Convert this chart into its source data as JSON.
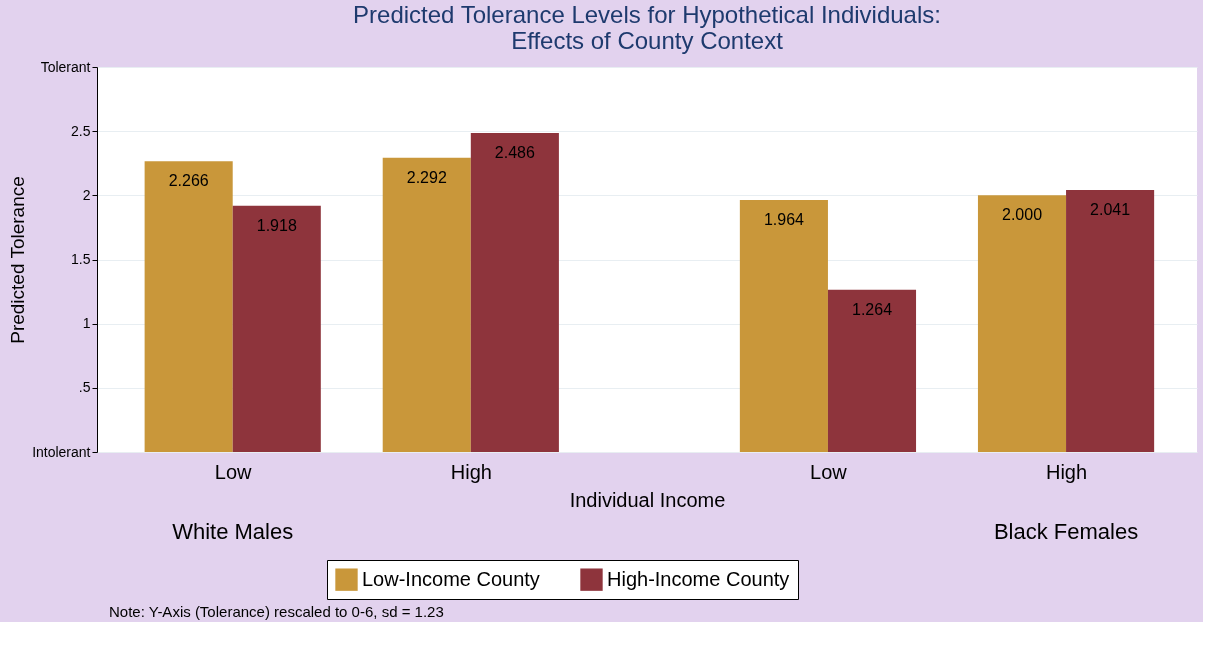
{
  "chart_data": {
    "type": "bar",
    "title": "Predicted Tolerance Levels for Hypothetical Individuals:\nEffects of County Context",
    "xlabel": "Individual Income",
    "ylabel": "Predicted Tolerance",
    "categories": [
      "Low",
      "High",
      "Low",
      "High"
    ],
    "series": [
      {
        "name": "Low-Income County",
        "color": "#c9973a",
        "values": [
          2.266,
          2.292,
          1.964,
          2.0
        ],
        "value_labels": [
          "2.266",
          "2.292",
          "1.964",
          "2.000"
        ]
      },
      {
        "name": "High-Income County",
        "color": "#8e343c",
        "values": [
          1.918,
          2.486,
          1.264,
          2.041
        ],
        "value_labels": [
          "1.918",
          "2.486",
          "1.264",
          "2.041"
        ]
      }
    ],
    "ylim": [
      0,
      3
    ],
    "yticks": [
      {
        "value": 0,
        "label": "Intolerant"
      },
      {
        "value": 0.5,
        "label": ".5"
      },
      1,
      1.5,
      2,
      2.5,
      {
        "value": 3,
        "label": "Tolerant"
      }
    ],
    "grid": "y",
    "legend": "bottom",
    "annotations": [
      "White Males",
      "Black Females",
      "Note: Y-Axis (Tolerance) rescaled to 0-6, sd = 1.23"
    ]
  }
}
